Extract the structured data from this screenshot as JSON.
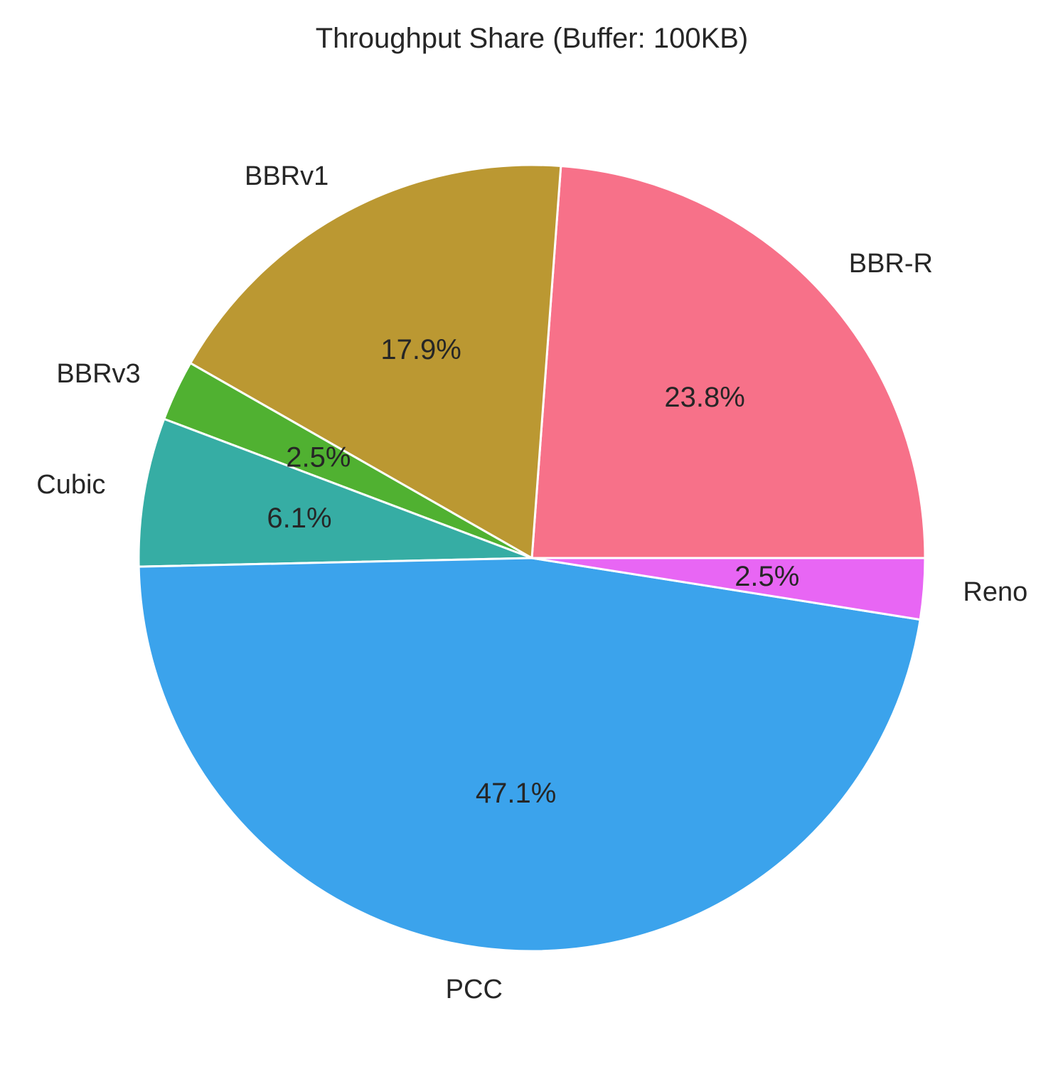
{
  "chart_data": {
    "type": "pie",
    "title": "Throughput Share (Buffer: 100KB)",
    "start_angle_deg": 0,
    "direction": "counterclockwise",
    "slices": [
      {
        "label": "BBR-R",
        "value": 23.8,
        "pct_label": "23.8%",
        "color": "#f77189"
      },
      {
        "label": "BBRv1",
        "value": 17.9,
        "pct_label": "17.9%",
        "color": "#bb9832"
      },
      {
        "label": "BBRv3",
        "value": 2.5,
        "pct_label": "2.5%",
        "color": "#50b131"
      },
      {
        "label": "Cubic",
        "value": 6.1,
        "pct_label": "6.1%",
        "color": "#36ada4"
      },
      {
        "label": "PCC",
        "value": 47.1,
        "pct_label": "47.1%",
        "color": "#3ba3ec"
      },
      {
        "label": "Reno",
        "value": 2.5,
        "pct_label": "2.5%",
        "color": "#e866f4"
      }
    ]
  }
}
